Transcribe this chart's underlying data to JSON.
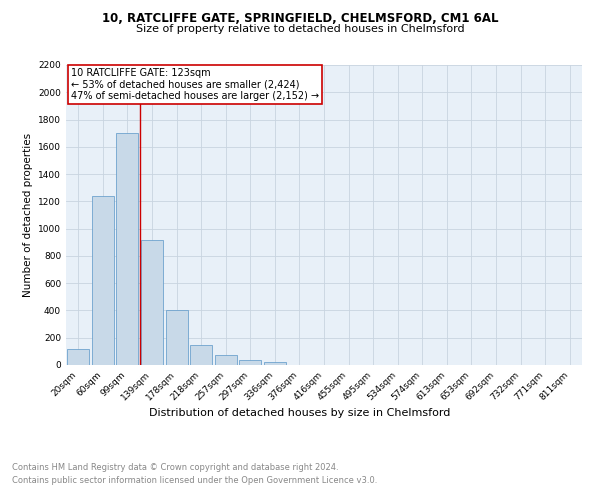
{
  "title_line1": "10, RATCLIFFE GATE, SPRINGFIELD, CHELMSFORD, CM1 6AL",
  "title_line2": "Size of property relative to detached houses in Chelmsford",
  "xlabel": "Distribution of detached houses by size in Chelmsford",
  "ylabel": "Number of detached properties",
  "categories": [
    "20sqm",
    "60sqm",
    "99sqm",
    "139sqm",
    "178sqm",
    "218sqm",
    "257sqm",
    "297sqm",
    "336sqm",
    "376sqm",
    "416sqm",
    "455sqm",
    "495sqm",
    "534sqm",
    "574sqm",
    "613sqm",
    "653sqm",
    "692sqm",
    "732sqm",
    "771sqm",
    "811sqm"
  ],
  "values": [
    120,
    1240,
    1700,
    920,
    400,
    150,
    70,
    35,
    25,
    0,
    0,
    0,
    0,
    0,
    0,
    0,
    0,
    0,
    0,
    0,
    0
  ],
  "bar_color": "#c8d9e8",
  "bar_edge_color": "#5a96c8",
  "vline_x": 2.5,
  "annotation_text_line1": "10 RATCLIFFE GATE: 123sqm",
  "annotation_text_line2": "← 53% of detached houses are smaller (2,424)",
  "annotation_text_line3": "47% of semi-detached houses are larger (2,152) →",
  "vline_color": "#cc0000",
  "box_edge_color": "#cc0000",
  "ylim": [
    0,
    2200
  ],
  "yticks": [
    0,
    200,
    400,
    600,
    800,
    1000,
    1200,
    1400,
    1600,
    1800,
    2000,
    2200
  ],
  "background_color": "#ffffff",
  "grid_color": "#c8d4e0",
  "axes_bg_color": "#e8f0f8",
  "footer_line1": "Contains HM Land Registry data © Crown copyright and database right 2024.",
  "footer_line2": "Contains public sector information licensed under the Open Government Licence v3.0.",
  "title_fontsize": 8.5,
  "subtitle_fontsize": 8,
  "xlabel_fontsize": 8,
  "ylabel_fontsize": 7.5,
  "tick_fontsize": 6.5,
  "annotation_fontsize": 7,
  "footer_fontsize": 6
}
